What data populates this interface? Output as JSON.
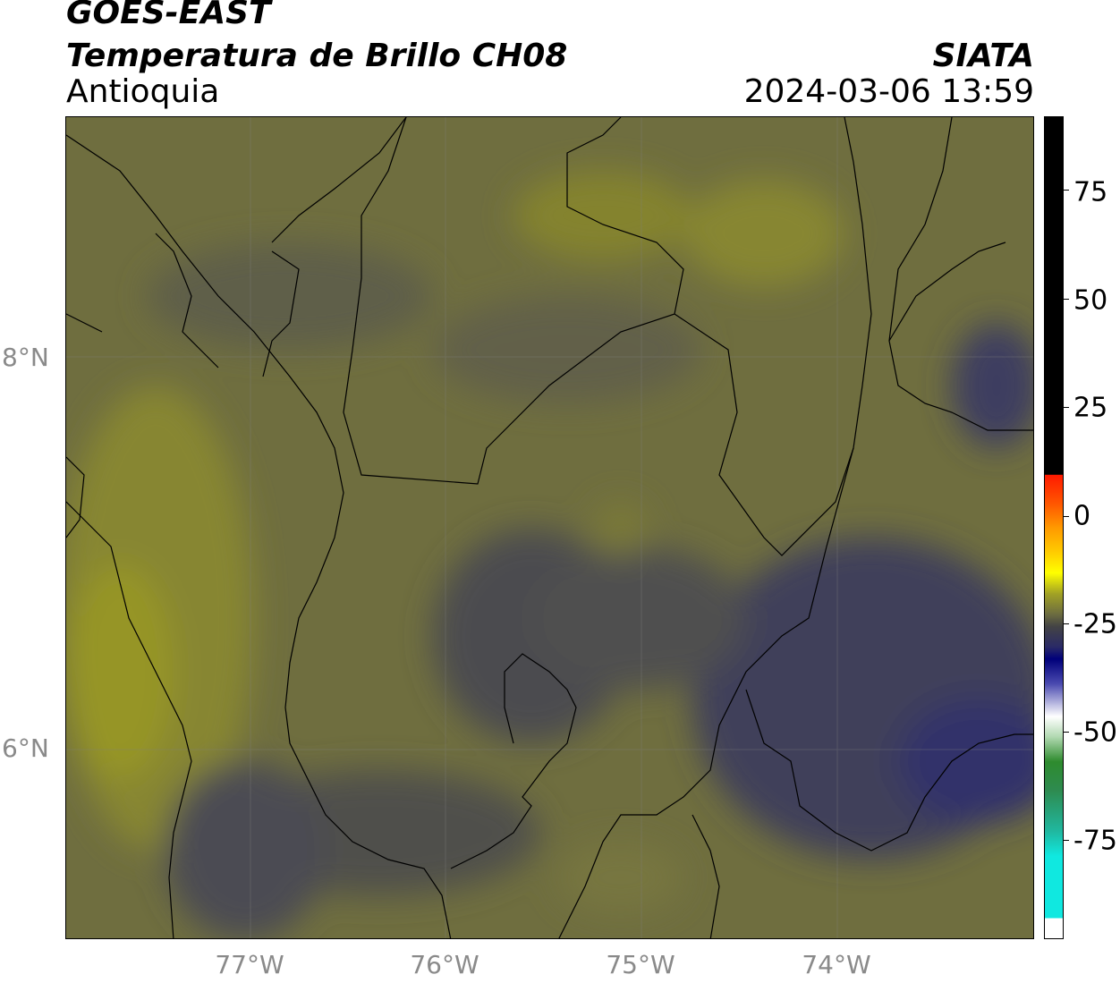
{
  "title": {
    "line1": "GOES-EAST",
    "line2": "Temperatura de Brillo CH08",
    "line3": "Antioquia",
    "org": "SIATA",
    "datetime": "2024-03-06 13:59"
  },
  "map": {
    "lat_labels": [
      "8°N",
      "6°N"
    ],
    "lon_labels": [
      "77°W",
      "76°W",
      "75°W",
      "74°W"
    ]
  },
  "colorbar": {
    "tick_labels": [
      "75",
      "50",
      "25",
      "0",
      "-25",
      "-50",
      "-75"
    ],
    "colors": {
      "black": "#000000",
      "red": "#ff1a00",
      "orange": "#ff9900",
      "yellow": "#ffff00",
      "olive": "#8a8a22",
      "gray": "#444444",
      "navy": "#00007a",
      "white": "#ffffff",
      "green": "#2e8b2e",
      "cyan": "#10e8e0"
    }
  }
}
